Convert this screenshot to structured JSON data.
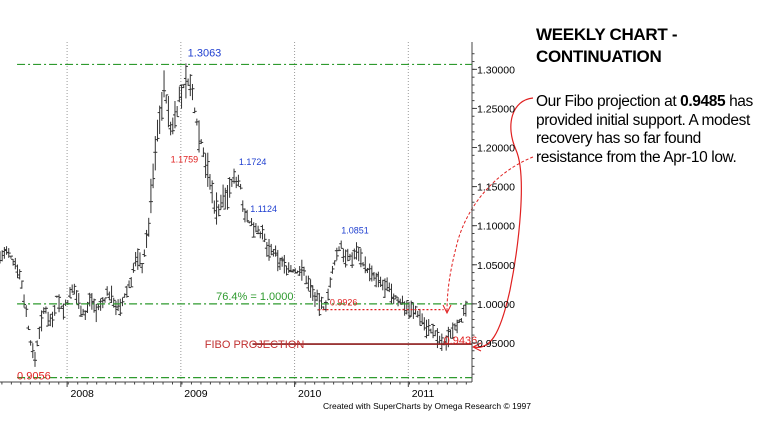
{
  "commentary": {
    "heading": "WEEKLY CHART - CONTINUATION",
    "text_before": "Our Fibo projection at ",
    "highlight": "0.9485",
    "text_after": " has provided initial support. A modest recovery has so far found resistance from the Apr-10 low."
  },
  "chart_data": {
    "type": "ohlc",
    "frequency": "weekly",
    "x_axis": {
      "labels": [
        "2008",
        "2009",
        "2010",
        "2011"
      ],
      "range": [
        2007.4,
        2011.55
      ]
    },
    "y_axis": {
      "labels": [
        "0.95000",
        "1.00000",
        "1.05000",
        "1.10000",
        "1.15000",
        "1.20000",
        "1.25000",
        "1.30000"
      ],
      "range": [
        0.9,
        1.335
      ],
      "position": "right"
    },
    "horizontal_levels": [
      {
        "value": 1.3063,
        "style": "dash-dot",
        "color": "#2e9a2e"
      },
      {
        "value": 1.0,
        "style": "dash-dot",
        "color": "#2e9a2e"
      },
      {
        "value": 0.9056,
        "style": "dash-dot",
        "color": "#2e9a2e"
      },
      {
        "value": 0.9926,
        "style": "dotted",
        "color": "#e02020"
      },
      {
        "value": 0.9485,
        "style": "solid",
        "color": "#8b1a1a"
      }
    ],
    "annotations": [
      {
        "text": "1.3063",
        "x": 2009.05,
        "y": 1.3063,
        "color": "#1f3fd0"
      },
      {
        "text": "1.1759",
        "x": 2008.9,
        "y": 1.1759,
        "color": "#e02020"
      },
      {
        "text": "1.1724",
        "x": 2009.5,
        "y": 1.1724,
        "color": "#1f3fd0"
      },
      {
        "text": "1.1124",
        "x": 2009.6,
        "y": 1.1124,
        "color": "#1f3fd0"
      },
      {
        "text": "1.0851",
        "x": 2010.4,
        "y": 1.0851,
        "color": "#1f3fd0"
      },
      {
        "text": "0.9926",
        "x": 2010.3,
        "y": 0.9926,
        "color": "#e02020"
      },
      {
        "text": "0.9436",
        "x": 2011.3,
        "y": 0.9436,
        "color": "#e02020"
      },
      {
        "text": "0.9056",
        "x": 2007.55,
        "y": 0.9056,
        "color": "#e02020"
      },
      {
        "text": "76.4% = 1.0000",
        "x": 2009.3,
        "y": 1.0,
        "color": "#2e9a2e"
      },
      {
        "text": "FIBO PROJECTION",
        "x": 2009.2,
        "y": 0.9485,
        "color": "#c03030"
      }
    ],
    "footer": "Created with SuperCharts by Omega Research © 1997",
    "series": [
      {
        "name": "",
        "points": [
          [
            2007.4,
            1.06
          ],
          [
            2007.45,
            1.065
          ],
          [
            2007.5,
            1.058
          ],
          [
            2007.55,
            1.05
          ],
          [
            2007.6,
            1.02
          ],
          [
            2007.65,
            0.97
          ],
          [
            2007.7,
            0.925
          ],
          [
            2007.75,
            0.97
          ],
          [
            2007.8,
            0.995
          ],
          [
            2007.85,
            0.975
          ],
          [
            2007.9,
            1.01
          ],
          [
            2007.95,
            0.99
          ],
          [
            2008.0,
            1.005
          ],
          [
            2008.05,
            1.02
          ],
          [
            2008.1,
            1.0
          ],
          [
            2008.15,
            0.985
          ],
          [
            2008.2,
            1.01
          ],
          [
            2008.25,
            0.99
          ],
          [
            2008.3,
            1.0
          ],
          [
            2008.35,
            1.015
          ],
          [
            2008.4,
            1.005
          ],
          [
            2008.45,
            0.99
          ],
          [
            2008.5,
            1.01
          ],
          [
            2008.55,
            1.03
          ],
          [
            2008.6,
            1.06
          ],
          [
            2008.65,
            1.05
          ],
          [
            2008.7,
            1.09
          ],
          [
            2008.75,
            1.17
          ],
          [
            2008.8,
            1.24
          ],
          [
            2008.85,
            1.28
          ],
          [
            2008.9,
            1.22
          ],
          [
            2008.95,
            1.25
          ],
          [
            2009.0,
            1.27
          ],
          [
            2009.05,
            1.29
          ],
          [
            2009.1,
            1.26
          ],
          [
            2009.15,
            1.22
          ],
          [
            2009.2,
            1.19
          ],
          [
            2009.25,
            1.15
          ],
          [
            2009.3,
            1.12
          ],
          [
            2009.35,
            1.13
          ],
          [
            2009.4,
            1.14
          ],
          [
            2009.45,
            1.16
          ],
          [
            2009.5,
            1.16
          ],
          [
            2009.55,
            1.12
          ],
          [
            2009.6,
            1.1
          ],
          [
            2009.65,
            1.1
          ],
          [
            2009.7,
            1.09
          ],
          [
            2009.75,
            1.07
          ],
          [
            2009.8,
            1.065
          ],
          [
            2009.85,
            1.055
          ],
          [
            2009.9,
            1.05
          ],
          [
            2009.95,
            1.045
          ],
          [
            2010.0,
            1.04
          ],
          [
            2010.05,
            1.045
          ],
          [
            2010.1,
            1.03
          ],
          [
            2010.15,
            1.015
          ],
          [
            2010.2,
            1.0
          ],
          [
            2010.25,
            0.995
          ],
          [
            2010.3,
            1.02
          ],
          [
            2010.35,
            1.06
          ],
          [
            2010.4,
            1.075
          ],
          [
            2010.45,
            1.055
          ],
          [
            2010.5,
            1.06
          ],
          [
            2010.55,
            1.07
          ],
          [
            2010.6,
            1.05
          ],
          [
            2010.65,
            1.04
          ],
          [
            2010.7,
            1.03
          ],
          [
            2010.75,
            1.025
          ],
          [
            2010.8,
            1.02
          ],
          [
            2010.85,
            1.01
          ],
          [
            2010.9,
            1.005
          ],
          [
            2010.95,
            1.0
          ],
          [
            2011.0,
            0.995
          ],
          [
            2011.05,
            0.99
          ],
          [
            2011.1,
            0.985
          ],
          [
            2011.15,
            0.97
          ],
          [
            2011.2,
            0.965
          ],
          [
            2011.25,
            0.955
          ],
          [
            2011.3,
            0.946
          ],
          [
            2011.35,
            0.96
          ],
          [
            2011.4,
            0.975
          ],
          [
            2011.45,
            0.98
          ],
          [
            2011.5,
            0.99
          ]
        ]
      }
    ]
  }
}
